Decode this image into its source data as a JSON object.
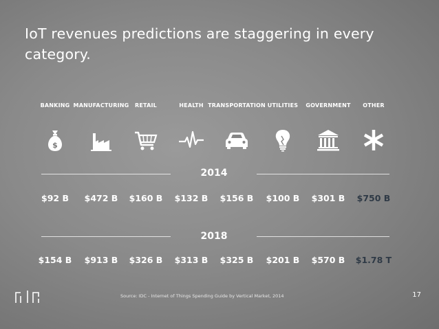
{
  "slide": {
    "title": "IoT revenues predictions are staggering in every category.",
    "source": "Source: IDC - Internet of Things Spending Guide by Vertical Market, 2014",
    "page_number": "17",
    "highlight_color": "#2f3a46"
  },
  "categories": [
    {
      "label": "BANKING",
      "icon": "money-bag-icon"
    },
    {
      "label": "MANUFACTURING",
      "icon": "factory-icon"
    },
    {
      "label": "RETAIL",
      "icon": "shopping-cart-icon"
    },
    {
      "label": "HEALTH",
      "icon": "heartbeat-icon"
    },
    {
      "label": "TRANSPORTATION",
      "icon": "car-icon"
    },
    {
      "label": "UTILITIES",
      "icon": "lightbulb-icon"
    },
    {
      "label": "GOVERNMENT",
      "icon": "government-building-icon"
    },
    {
      "label": "OTHER",
      "icon": "asterisk-icon"
    }
  ],
  "years": [
    {
      "label": "2014",
      "values": [
        "$92 B",
        "$472 B",
        "$160 B",
        "$132 B",
        "$156 B",
        "$100 B",
        "$301 B",
        "$750 B"
      ]
    },
    {
      "label": "2018",
      "values": [
        "$154 B",
        "$913 B",
        "$326 B",
        "$313 B",
        "$325 B",
        "$201 B",
        "$570 B",
        "$1.78 T"
      ]
    }
  ]
}
